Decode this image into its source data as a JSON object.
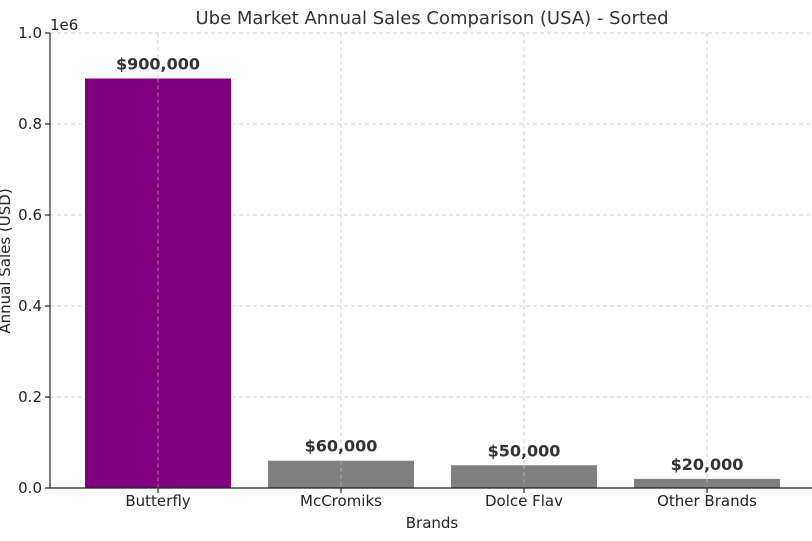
{
  "chart_data": {
    "type": "bar",
    "title": "Ube Market Annual Sales Comparison (USA) - Sorted",
    "xlabel": "Brands",
    "ylabel": "Annual Sales (USD)",
    "scale_label": "1e6",
    "categories": [
      "Butterfly",
      "McCromiks",
      "Dolce Flav",
      "Other Brands"
    ],
    "values": [
      900000,
      60000,
      50000,
      20000
    ],
    "data_labels": [
      "$900,000",
      "$60,000",
      "$50,000",
      "$20,000"
    ],
    "bar_colors": [
      "#800080",
      "#808080",
      "#808080",
      "#808080"
    ],
    "ylim": [
      0,
      1000000
    ],
    "y_ticks": [
      0,
      200000,
      400000,
      600000,
      800000,
      1000000
    ],
    "y_tick_labels": [
      "0.0",
      "0.2",
      "0.4",
      "0.6",
      "0.8",
      "1.0"
    ],
    "grid": true,
    "legend": false
  }
}
